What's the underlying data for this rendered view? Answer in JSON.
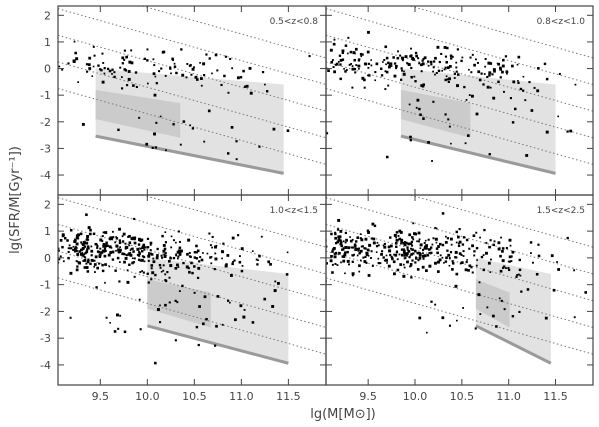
{
  "chart_data": {
    "type": "scatter",
    "xlabel": "lg(M[M⊙])",
    "ylabel": "lg(SFR/M[Gyr⁻¹])",
    "xlim": [
      9.05,
      11.9
    ],
    "ylim": [
      -4.75,
      2.35
    ],
    "xticks": [
      9.5,
      10.0,
      10.5,
      11.0,
      11.5
    ],
    "xtick_labels": [
      "9.5",
      "10.0",
      "10.5",
      "11.0",
      "11.5"
    ],
    "yticks": [
      2,
      1,
      0,
      -1,
      -2,
      -3,
      -4
    ],
    "ytick_labels": [
      "2",
      "1",
      "0",
      "-1",
      "-2",
      "-3",
      "-4"
    ],
    "grid": false,
    "colors": {
      "points": "#000000",
      "envelope_light": "#e2e2e2",
      "envelope_mid": "#cbcbcb",
      "envelope_dark": "#9a9a9a",
      "reference_lines": "#777777"
    },
    "reference_lines": {
      "style": "dotted",
      "slope": -1,
      "intercepts": [
        12.3,
        11.3,
        10.3,
        9.3,
        8.3
      ]
    },
    "panels": [
      {
        "label": "0.5<z<0.8",
        "envelope": {
          "x_min": 9.45,
          "x_max": 11.45,
          "y_top_at_min": 0.0,
          "y_top_at_max": -0.6,
          "y_bottom_at_min": -2.5,
          "y_bottom_at_max": -3.9
        },
        "points": [
          {
            "center": [
              9.3,
              0.2
            ],
            "spread": [
              0.2,
              0.4
            ],
            "n": 25
          },
          {
            "center": [
              9.8,
              0.1
            ],
            "spread": [
              0.25,
              0.35
            ],
            "n": 40
          },
          {
            "center": [
              10.4,
              -0.15
            ],
            "spread": [
              0.35,
              0.35
            ],
            "n": 30
          },
          {
            "center": [
              10.9,
              -0.3
            ],
            "spread": [
              0.35,
              0.4
            ],
            "n": 20
          },
          {
            "center": [
              10.3,
              -2.2
            ],
            "spread": [
              0.8,
              0.7
            ],
            "n": 30
          }
        ]
      },
      {
        "label": "0.8<z<1.0",
        "envelope": {
          "x_min": 9.85,
          "x_max": 11.5,
          "y_top_at_min": 0.0,
          "y_top_at_max": -0.6,
          "y_bottom_at_min": -2.5,
          "y_bottom_at_max": -3.9
        },
        "points": [
          {
            "center": [
              9.3,
              0.25
            ],
            "spread": [
              0.2,
              0.4
            ],
            "n": 60
          },
          {
            "center": [
              9.8,
              0.15
            ],
            "spread": [
              0.3,
              0.35
            ],
            "n": 80
          },
          {
            "center": [
              10.4,
              -0.05
            ],
            "spread": [
              0.35,
              0.4
            ],
            "n": 60
          },
          {
            "center": [
              11.0,
              -0.3
            ],
            "spread": [
              0.3,
              0.4
            ],
            "n": 30
          },
          {
            "center": [
              10.5,
              -2.0
            ],
            "spread": [
              0.7,
              0.7
            ],
            "n": 35
          }
        ]
      },
      {
        "label": "1.0<z<1.5",
        "envelope": {
          "x_min": 10.0,
          "x_max": 11.5,
          "y_top_at_min": 0.0,
          "y_top_at_max": -0.6,
          "y_bottom_at_min": -2.5,
          "y_bottom_at_max": -3.9
        },
        "points": [
          {
            "center": [
              9.3,
              0.35
            ],
            "spread": [
              0.2,
              0.4
            ],
            "n": 120
          },
          {
            "center": [
              9.8,
              0.25
            ],
            "spread": [
              0.3,
              0.4
            ],
            "n": 150
          },
          {
            "center": [
              10.4,
              0.05
            ],
            "spread": [
              0.35,
              0.4
            ],
            "n": 90
          },
          {
            "center": [
              10.95,
              -0.2
            ],
            "spread": [
              0.25,
              0.4
            ],
            "n": 20
          },
          {
            "center": [
              10.4,
              -2.1
            ],
            "spread": [
              0.6,
              0.7
            ],
            "n": 45
          }
        ]
      },
      {
        "label": "1.5<z<2.5",
        "envelope": {
          "x_min": 10.65,
          "x_max": 11.45,
          "y_top_at_min": 0.0,
          "y_top_at_max": -0.6,
          "y_bottom_at_min": -2.5,
          "y_bottom_at_max": -3.9
        },
        "points": [
          {
            "center": [
              9.3,
              0.3
            ],
            "spread": [
              0.2,
              0.4
            ],
            "n": 110
          },
          {
            "center": [
              9.9,
              0.3
            ],
            "spread": [
              0.3,
              0.4
            ],
            "n": 160
          },
          {
            "center": [
              10.5,
              0.15
            ],
            "spread": [
              0.35,
              0.4
            ],
            "n": 100
          },
          {
            "center": [
              11.0,
              -0.05
            ],
            "spread": [
              0.25,
              0.4
            ],
            "n": 25
          },
          {
            "center": [
              10.9,
              -2.0
            ],
            "spread": [
              0.4,
              0.8
            ],
            "n": 30
          }
        ]
      }
    ]
  }
}
